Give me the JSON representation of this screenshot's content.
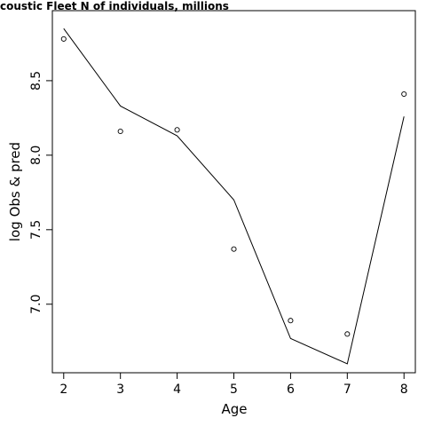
{
  "chart_data": {
    "type": "line",
    "title": "coustic Fleet   N of individuals, millions",
    "xlabel": "Age",
    "ylabel": "log Obs & pred",
    "x": [
      2,
      3,
      4,
      5,
      6,
      7,
      8
    ],
    "xticks": [
      2,
      3,
      4,
      5,
      6,
      7,
      8
    ],
    "xlim": [
      1.8,
      8.2
    ],
    "yticks": [
      7.0,
      7.5,
      8.0,
      8.5
    ],
    "ytick_labels": [
      "7.0",
      "7.5",
      "8.0",
      "8.5"
    ],
    "ylim": [
      6.54,
      8.97
    ],
    "grid": false,
    "series": [
      {
        "style": "points",
        "values": [
          8.78,
          8.16,
          8.17,
          7.37,
          6.89,
          6.8,
          8.41
        ]
      },
      {
        "style": "line",
        "values": [
          8.85,
          8.33,
          8.13,
          7.7,
          6.77,
          6.6,
          8.26
        ]
      }
    ]
  }
}
